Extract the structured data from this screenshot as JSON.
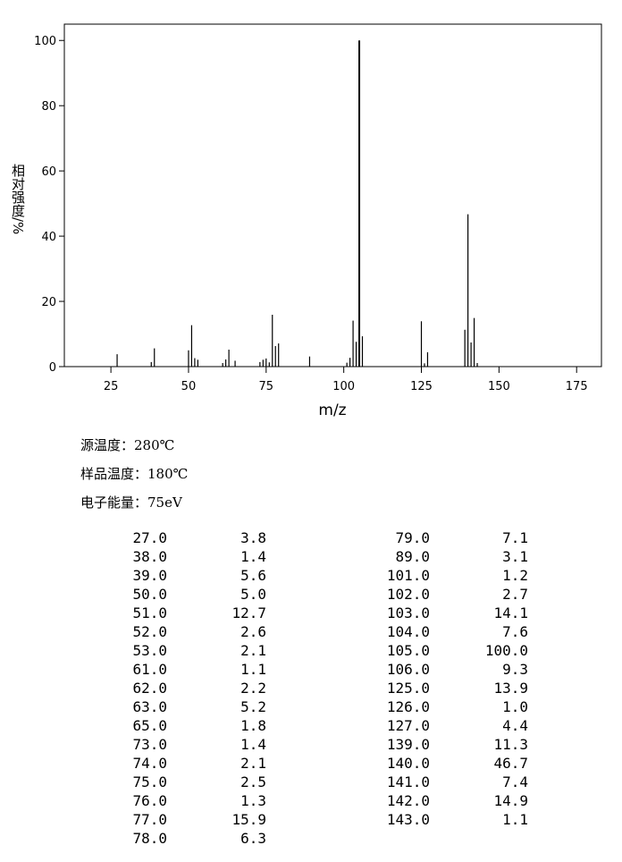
{
  "chart_data": {
    "type": "stem",
    "xlabel": "m/z",
    "ylabel": "相对强度/%",
    "xlim": [
      10,
      183
    ],
    "ylim": [
      0,
      105
    ],
    "xticks": [
      25,
      50,
      75,
      100,
      125,
      150,
      175
    ],
    "yticks": [
      0,
      20,
      40,
      60,
      80,
      100
    ],
    "color": "#000000",
    "x": [
      27,
      38,
      39,
      50,
      51,
      52,
      53,
      61,
      62,
      63,
      65,
      73,
      74,
      75,
      76,
      77,
      78,
      79,
      89,
      101,
      102,
      103,
      104,
      105,
      106,
      125,
      126,
      127,
      139,
      140,
      141,
      142,
      143
    ],
    "x_labels": [
      "27.0",
      "38.0",
      "39.0",
      "50.0",
      "51.0",
      "52.0",
      "53.0",
      "61.0",
      "62.0",
      "63.0",
      "65.0",
      "73.0",
      "74.0",
      "75.0",
      "76.0",
      "77.0",
      "78.0",
      "79.0",
      "89.0",
      "101.0",
      "102.0",
      "103.0",
      "104.0",
      "105.0",
      "106.0",
      "125.0",
      "126.0",
      "127.0",
      "139.0",
      "140.0",
      "141.0",
      "142.0",
      "143.0"
    ],
    "values": [
      3.8,
      1.4,
      5.6,
      5.0,
      12.7,
      2.6,
      2.1,
      1.1,
      2.2,
      5.2,
      1.8,
      1.4,
      2.1,
      2.5,
      1.3,
      15.9,
      6.3,
      7.1,
      3.1,
      1.2,
      2.7,
      14.1,
      7.6,
      100.0,
      9.3,
      13.9,
      1.0,
      4.4,
      11.3,
      46.7,
      7.4,
      14.9,
      1.1
    ],
    "value_labels": [
      "3.8",
      "1.4",
      "5.6",
      "5.0",
      "12.7",
      "2.6",
      "2.1",
      "1.1",
      "2.2",
      "5.2",
      "1.8",
      "1.4",
      "2.1",
      "2.5",
      "1.3",
      "15.9",
      "6.3",
      "7.1",
      "3.1",
      "1.2",
      "2.7",
      "14.1",
      "7.6",
      "100.0",
      "9.3",
      "13.9",
      "1.0",
      "4.4",
      "11.3",
      "46.7",
      "7.4",
      "14.9",
      "1.1"
    ],
    "conditions": [
      "源温度：280℃",
      "样品温度：180℃",
      "电子能量：75eV"
    ]
  }
}
